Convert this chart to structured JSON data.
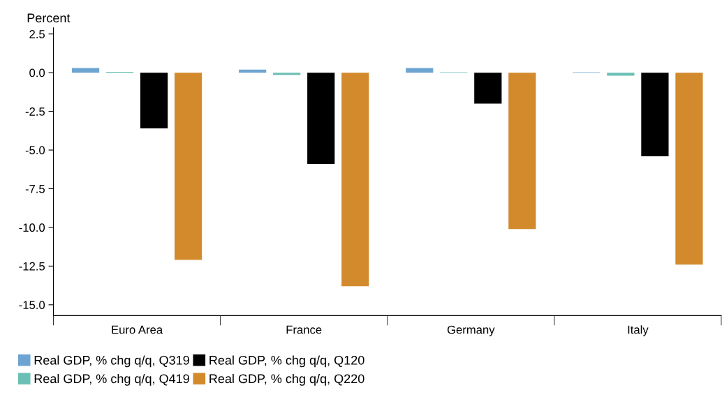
{
  "chart_data": {
    "type": "bar",
    "ylabel": "Percent",
    "categories": [
      "Euro Area",
      "France",
      "Germany",
      "Italy"
    ],
    "series": [
      {
        "name": "Real GDP, % chg q/q, Q319",
        "color": "#6ea4d2",
        "values": [
          0.3,
          0.2,
          0.3,
          0.03
        ]
      },
      {
        "name": "Real GDP, % chg q/q, Q419",
        "color": "#6cbfb4",
        "values": [
          0.05,
          -0.15,
          0.03,
          -0.2
        ]
      },
      {
        "name": "Real GDP, % chg q/q, Q120",
        "color": "#000000",
        "values": [
          -3.6,
          -5.9,
          -2.0,
          -5.4
        ]
      },
      {
        "name": "Real GDP, % chg q/q, Q220",
        "color": "#d38a2c",
        "values": [
          -12.1,
          -13.8,
          -10.1,
          -12.4
        ]
      }
    ],
    "ylim": [
      -15.7,
      2.9
    ],
    "yticks": [
      {
        "value": -15,
        "label": "-15.0"
      },
      {
        "value": -12.5,
        "label": "-12.5"
      },
      {
        "value": -10,
        "label": "-10.0"
      },
      {
        "value": -7.5,
        "label": "-7.5"
      },
      {
        "value": -5,
        "label": "-5.0"
      },
      {
        "value": -2.5,
        "label": "-2.5"
      },
      {
        "value": 0,
        "label": "0.0"
      },
      {
        "value": 2.5,
        "label": "2.5"
      }
    ],
    "grid": false,
    "legend": "bottom left"
  }
}
